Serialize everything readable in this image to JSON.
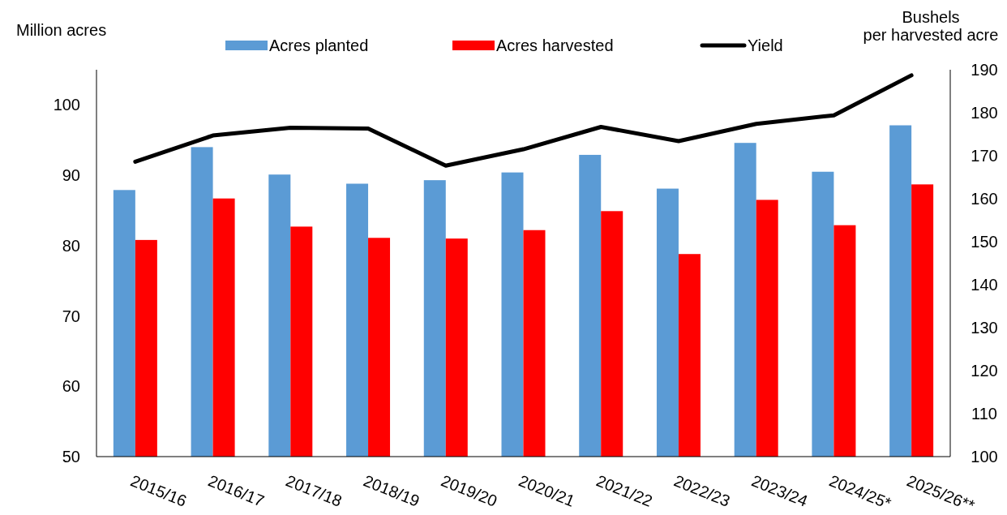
{
  "chart_data": {
    "type": "bar",
    "ylabel": "Million acres",
    "y2label": "Bushels per harvested acre",
    "categories": [
      "2015/16",
      "2016/17",
      "2017/18",
      "2018/19",
      "2019/20",
      "2020/21",
      "2021/22",
      "2022/23",
      "2023/24",
      "2024/25*",
      "2025/26**"
    ],
    "series": [
      {
        "name": "Acres planted",
        "color": "#5b9bd5",
        "values": [
          87.9,
          94.0,
          90.1,
          88.8,
          89.3,
          90.4,
          92.9,
          88.1,
          94.6,
          90.5,
          97.1
        ]
      },
      {
        "name": "Acres harvested",
        "color": "#ff0000",
        "values": [
          80.8,
          86.7,
          82.7,
          81.1,
          81.0,
          82.2,
          84.9,
          78.8,
          86.5,
          82.9,
          88.7
        ]
      },
      {
        "name": "Yield",
        "type": "line",
        "axis": "y2",
        "color": "#000000",
        "values": [
          168.6,
          174.7,
          176.5,
          176.3,
          167.7,
          171.5,
          176.7,
          173.4,
          177.4,
          179.4,
          188.7
        ]
      }
    ],
    "ylim": [
      50,
      105
    ],
    "yticks": [
      50,
      60,
      70,
      80,
      90,
      100
    ],
    "y2lim": [
      100,
      190
    ],
    "y2ticks": [
      100,
      110,
      120,
      130,
      140,
      150,
      160,
      170,
      180,
      190
    ],
    "legend": "top",
    "grid": false
  }
}
